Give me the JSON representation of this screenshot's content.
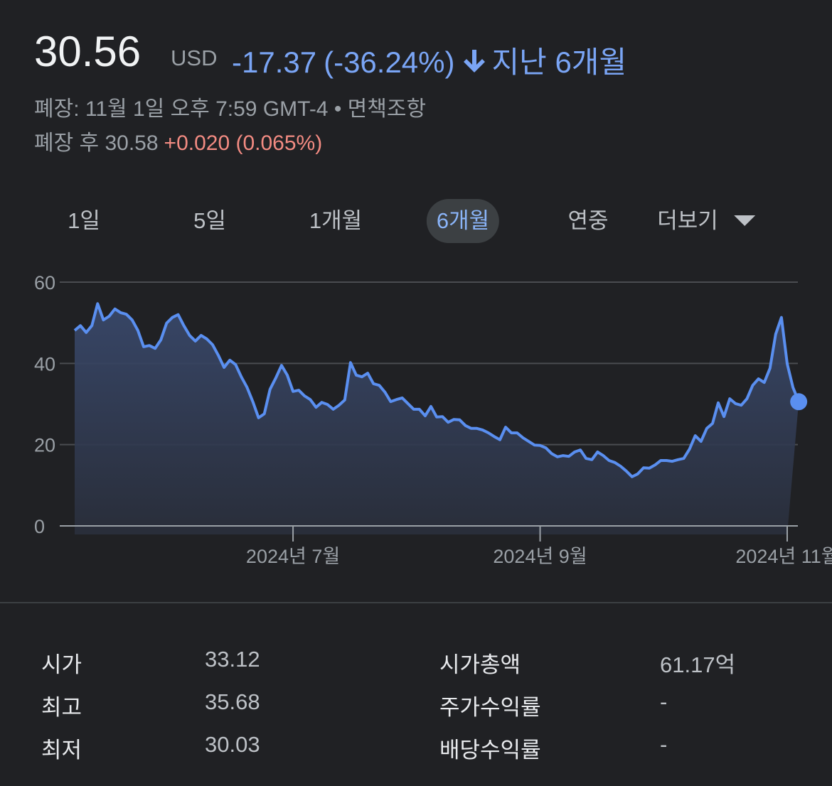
{
  "header": {
    "price": "30.56",
    "currency": "USD",
    "change": "-17.37",
    "change_percent": "(-36.24%)",
    "period": "지난 6개월",
    "close_info": "폐장: 11월 1일 오후 7:59 GMT-4 • 면책조항",
    "after_hours": "폐장 후 30.58",
    "after_hours_change": "+0.020 (0.065%)"
  },
  "tabs": [
    "1일",
    "5일",
    "1개월",
    "6개월",
    "연중",
    "더보기"
  ],
  "selected_tab": 3,
  "chart_data": {
    "type": "line",
    "color": "#5a8ff0",
    "values": [
      48.1,
      49.3,
      47.6,
      49.3,
      54.7,
      50.7,
      51.6,
      53.4,
      52.5,
      52.1,
      50.7,
      48.1,
      44.1,
      44.4,
      43.7,
      45.8,
      49.9,
      51.3,
      52.0,
      49.3,
      46.9,
      45.5,
      46.9,
      46.0,
      44.6,
      42.0,
      39.0,
      40.8,
      39.7,
      36.7,
      34.1,
      30.6,
      26.6,
      27.6,
      33.6,
      36.4,
      39.5,
      37.1,
      33.1,
      33.4,
      32.0,
      31.1,
      29.2,
      30.4,
      29.9,
      28.7,
      29.7,
      31.0,
      40.2,
      37.1,
      36.7,
      37.6,
      35.0,
      34.6,
      32.9,
      30.6,
      31.1,
      31.5,
      30.1,
      28.7,
      28.7,
      27.1,
      29.4,
      26.8,
      26.9,
      25.5,
      26.2,
      26.1,
      24.7,
      24.0,
      24.0,
      23.6,
      22.9,
      22.0,
      21.2,
      24.3,
      22.9,
      22.9,
      21.7,
      20.8,
      19.9,
      19.8,
      19.2,
      17.8,
      17.0,
      17.3,
      17.1,
      18.2,
      18.7,
      16.6,
      16.3,
      18.2,
      17.3,
      16.1,
      15.6,
      14.7,
      13.5,
      12.1,
      12.8,
      14.3,
      14.2,
      15.0,
      16.1,
      16.1,
      15.9,
      16.3,
      16.6,
      18.9,
      22.2,
      20.8,
      24.0,
      25.2,
      30.3,
      26.9,
      31.3,
      30.1,
      29.7,
      31.3,
      34.6,
      36.2,
      35.3,
      38.8,
      47.2,
      51.3,
      39.9,
      34.1,
      30.56
    ],
    "ylim": [
      0,
      60
    ],
    "yticks": [
      0,
      20,
      40,
      60
    ],
    "xlim": [
      0,
      124
    ],
    "xticks": [
      {
        "value": 38,
        "label": "2024년 7월"
      },
      {
        "value": 81,
        "label": "2024년 9월"
      },
      {
        "value": 124,
        "label": "2024년 11월"
      }
    ],
    "grid": true
  },
  "stats": [
    [
      "시가",
      "33.12",
      "시가총액",
      "61.17억"
    ],
    [
      "최고",
      "35.68",
      "주가수익률",
      "-"
    ],
    [
      "최저",
      "30.03",
      "배당수익률",
      "-"
    ]
  ]
}
